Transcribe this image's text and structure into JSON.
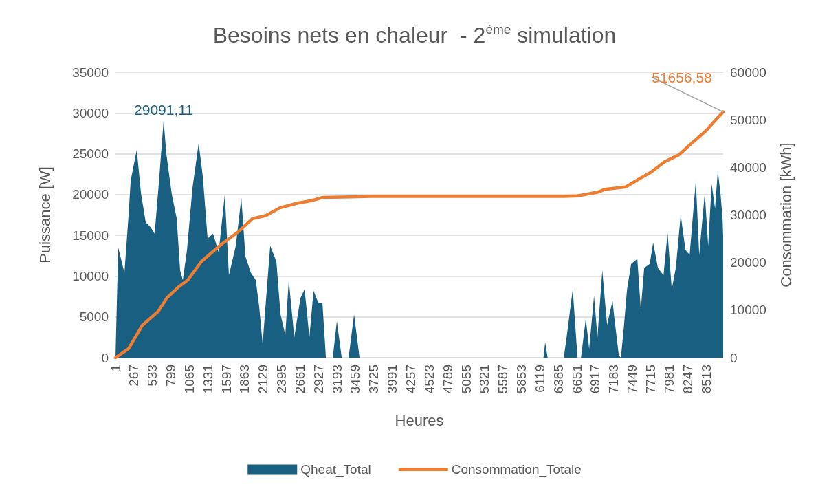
{
  "chart_data": {
    "type": "area",
    "title": "Besoins nets en chaleur  - 2$^{ème}$ simulation",
    "xlabel": "Heures",
    "ylabel": "Puissance [W]",
    "y2label": "Consommation [kWh]",
    "xlim": [
      1,
      8760
    ],
    "xticks": [
      1,
      267,
      533,
      799,
      1065,
      1331,
      1597,
      1863,
      2129,
      2395,
      2661,
      2927,
      3193,
      3459,
      3725,
      3991,
      4257,
      4523,
      4789,
      5055,
      5321,
      5587,
      5853,
      6119,
      6385,
      6651,
      6917,
      7183,
      7449,
      7715,
      7981,
      8247,
      8513
    ],
    "ylim": [
      0,
      35000
    ],
    "yticks": [
      0,
      5000,
      10000,
      15000,
      20000,
      25000,
      30000,
      35000
    ],
    "y2lim": [
      0,
      60000
    ],
    "y2ticks": [
      0,
      10000,
      20000,
      30000,
      40000,
      50000,
      60000
    ],
    "grid": "y",
    "legend": "bottom",
    "marker": "none",
    "series": [
      {
        "name": "Qheat_Total",
        "color": "#185f82",
        "x": [
          1,
          41,
          130,
          190,
          220,
          308,
          368,
          437,
          507,
          566,
          625,
          695,
          734,
          813,
          883,
          933,
          972,
          1032,
          1111,
          1200,
          1260,
          1329,
          1408,
          1488,
          1577,
          1636,
          1735,
          1815,
          1874,
          1953,
          2023,
          2073,
          2122,
          2231,
          2320,
          2380,
          2449,
          2499,
          2578,
          2667,
          2727,
          2796,
          2856,
          2925,
          2984,
          3034,
          3133,
          3192,
          3262,
          3361,
          3440,
          3519,
          6170,
          6195,
          6230,
          6463,
          6513,
          6592,
          6631,
          6661,
          6711,
          6780,
          6829,
          6899,
          6948,
          7018,
          7087,
          7166,
          7186,
          7256,
          7286,
          7325,
          7375,
          7434,
          7523,
          7573,
          7622,
          7702,
          7751,
          7820,
          7900,
          7959,
          8019,
          8078,
          8148,
          8217,
          8277,
          8366,
          8415,
          8495,
          8544,
          8594,
          8643,
          8683,
          8723,
          8752,
          8760
        ],
        "values": [
          0,
          13500,
          10400,
          17500,
          21700,
          25500,
          20200,
          16600,
          16000,
          15200,
          21300,
          29091.11,
          25000,
          20000,
          17100,
          10700,
          9500,
          13200,
          20800,
          26300,
          22200,
          14600,
          15200,
          12900,
          20000,
          10100,
          13700,
          19600,
          12400,
          10400,
          9500,
          6200,
          1700,
          13700,
          11800,
          5300,
          2800,
          9500,
          2500,
          7300,
          8400,
          2500,
          8200,
          6700,
          6700,
          0,
          0,
          4500,
          0,
          0,
          5300,
          0,
          0,
          1900,
          0,
          0,
          3100,
          8400,
          3600,
          0,
          0,
          4800,
          1100,
          7600,
          2500,
          10700,
          4000,
          7000,
          5300,
          300,
          0,
          3400,
          8400,
          11500,
          12100,
          5900,
          11000,
          11500,
          14100,
          11000,
          10100,
          15300,
          8400,
          11000,
          17500,
          13200,
          12600,
          21700,
          12600,
          20200,
          13700,
          21300,
          18300,
          22900,
          20000,
          16900,
          14900
        ],
        "value_labels": [
          null,
          null,
          null,
          null,
          null,
          null,
          null,
          null,
          null,
          null,
          null,
          "29091,11",
          null,
          null,
          null,
          null,
          null,
          null,
          null,
          null,
          null,
          null,
          null,
          null,
          null,
          null,
          null,
          null,
          null,
          null,
          null,
          null,
          null,
          null,
          null,
          null,
          null,
          null,
          null,
          null,
          null,
          null,
          null,
          null,
          null,
          null,
          null,
          null,
          null,
          null,
          null,
          null,
          null,
          null,
          null,
          null,
          null,
          null,
          null,
          null,
          null,
          null,
          null,
          null,
          null,
          null,
          null,
          null,
          null,
          null,
          null,
          null,
          null,
          null,
          null,
          null,
          null,
          null,
          null,
          null,
          null,
          null,
          null,
          null,
          null,
          null,
          null,
          null,
          null,
          null,
          null,
          null,
          null,
          null,
          null,
          null,
          null
        ]
      },
      {
        "name": "Consommation_Totale",
        "type": "line",
        "axis": "y2",
        "color": "#ed7d31",
        "x": [
          1,
          190,
          388,
          615,
          744,
          913,
          1042,
          1240,
          1508,
          1775,
          1973,
          2171,
          2370,
          2627,
          2825,
          2994,
          3390,
          3688,
          6463,
          6661,
          6958,
          7058,
          7355,
          7553,
          7721,
          7919,
          8118,
          8316,
          8514,
          8673,
          8760
        ],
        "values": [
          0,
          1900,
          6800,
          9700,
          12600,
          14900,
          16300,
          20200,
          23600,
          26500,
          29200,
          29900,
          31500,
          32500,
          33000,
          33700,
          33800,
          33900,
          33900,
          34000,
          34800,
          35400,
          35900,
          37600,
          39000,
          41200,
          42600,
          45200,
          47700,
          50300,
          51656.58
        ],
        "value_labels": [
          null,
          null,
          null,
          null,
          null,
          null,
          null,
          null,
          null,
          null,
          null,
          null,
          null,
          null,
          null,
          null,
          null,
          null,
          null,
          null,
          null,
          null,
          null,
          null,
          null,
          null,
          null,
          null,
          null,
          null,
          "51656,58"
        ]
      }
    ]
  }
}
